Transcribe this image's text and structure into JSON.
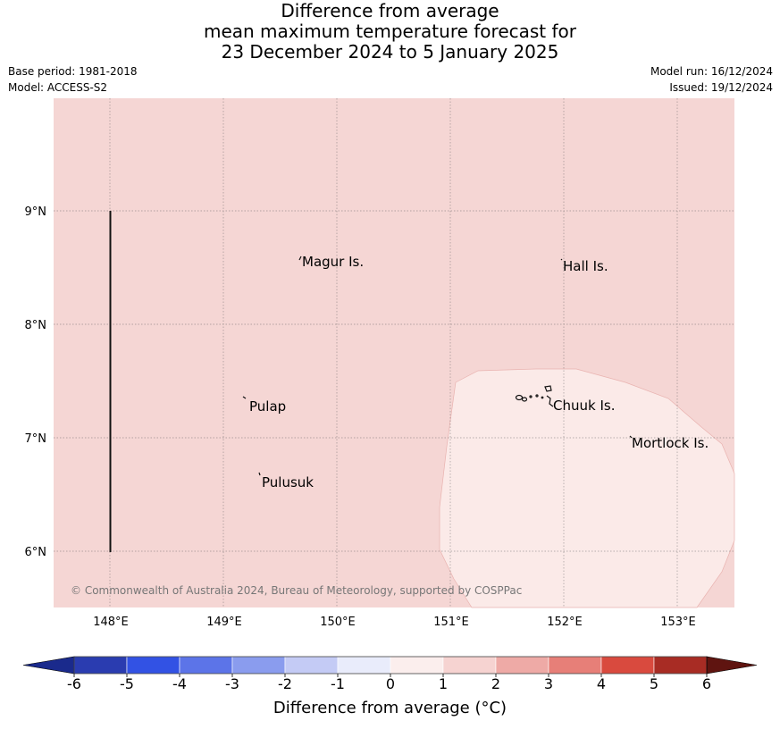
{
  "title": {
    "line1": "Difference from average",
    "line2": "mean maximum temperature forecast for",
    "line3": "23 December 2024 to 5 January 2025"
  },
  "meta_left": {
    "base_period": "Base period: 1981-2018",
    "model": "Model: ACCESS-S2"
  },
  "meta_right": {
    "model_run": "Model run: 16/12/2024",
    "issued": "Issued: 19/12/2024"
  },
  "map": {
    "lon_ticks": [
      "148°E",
      "149°E",
      "150°E",
      "151°E",
      "152°E",
      "153°E"
    ],
    "lat_ticks": [
      "9°N",
      "8°N",
      "7°N",
      "6°N"
    ],
    "places": [
      {
        "label": "Magur Is."
      },
      {
        "label": "Hall Is."
      },
      {
        "label": "Pulap"
      },
      {
        "label": "Chuuk Is."
      },
      {
        "label": "Mortlock Is."
      },
      {
        "label": "Pulusuk"
      }
    ],
    "credit": "© Commonwealth of Australia 2024, Bureau of Meteorology, supported by COSPPac",
    "background_color": "#f5d6d4",
    "anomaly_region_color": "#fbeae8"
  },
  "colorbar": {
    "ticks": [
      "-6",
      "-5",
      "-4",
      "-3",
      "-2",
      "-1",
      "0",
      "1",
      "2",
      "3",
      "4",
      "5",
      "6"
    ],
    "colors": [
      "#1a2a8c",
      "#2a3cb0",
      "#3252e4",
      "#5c74e8",
      "#8a9cee",
      "#c4cbf5",
      "#e9ecfb",
      "#fbeeed",
      "#f6d3d1",
      "#eeaaa6",
      "#e77f78",
      "#d94a3e",
      "#a82c24",
      "#5f1410"
    ],
    "label": "Difference from average (°C)"
  }
}
